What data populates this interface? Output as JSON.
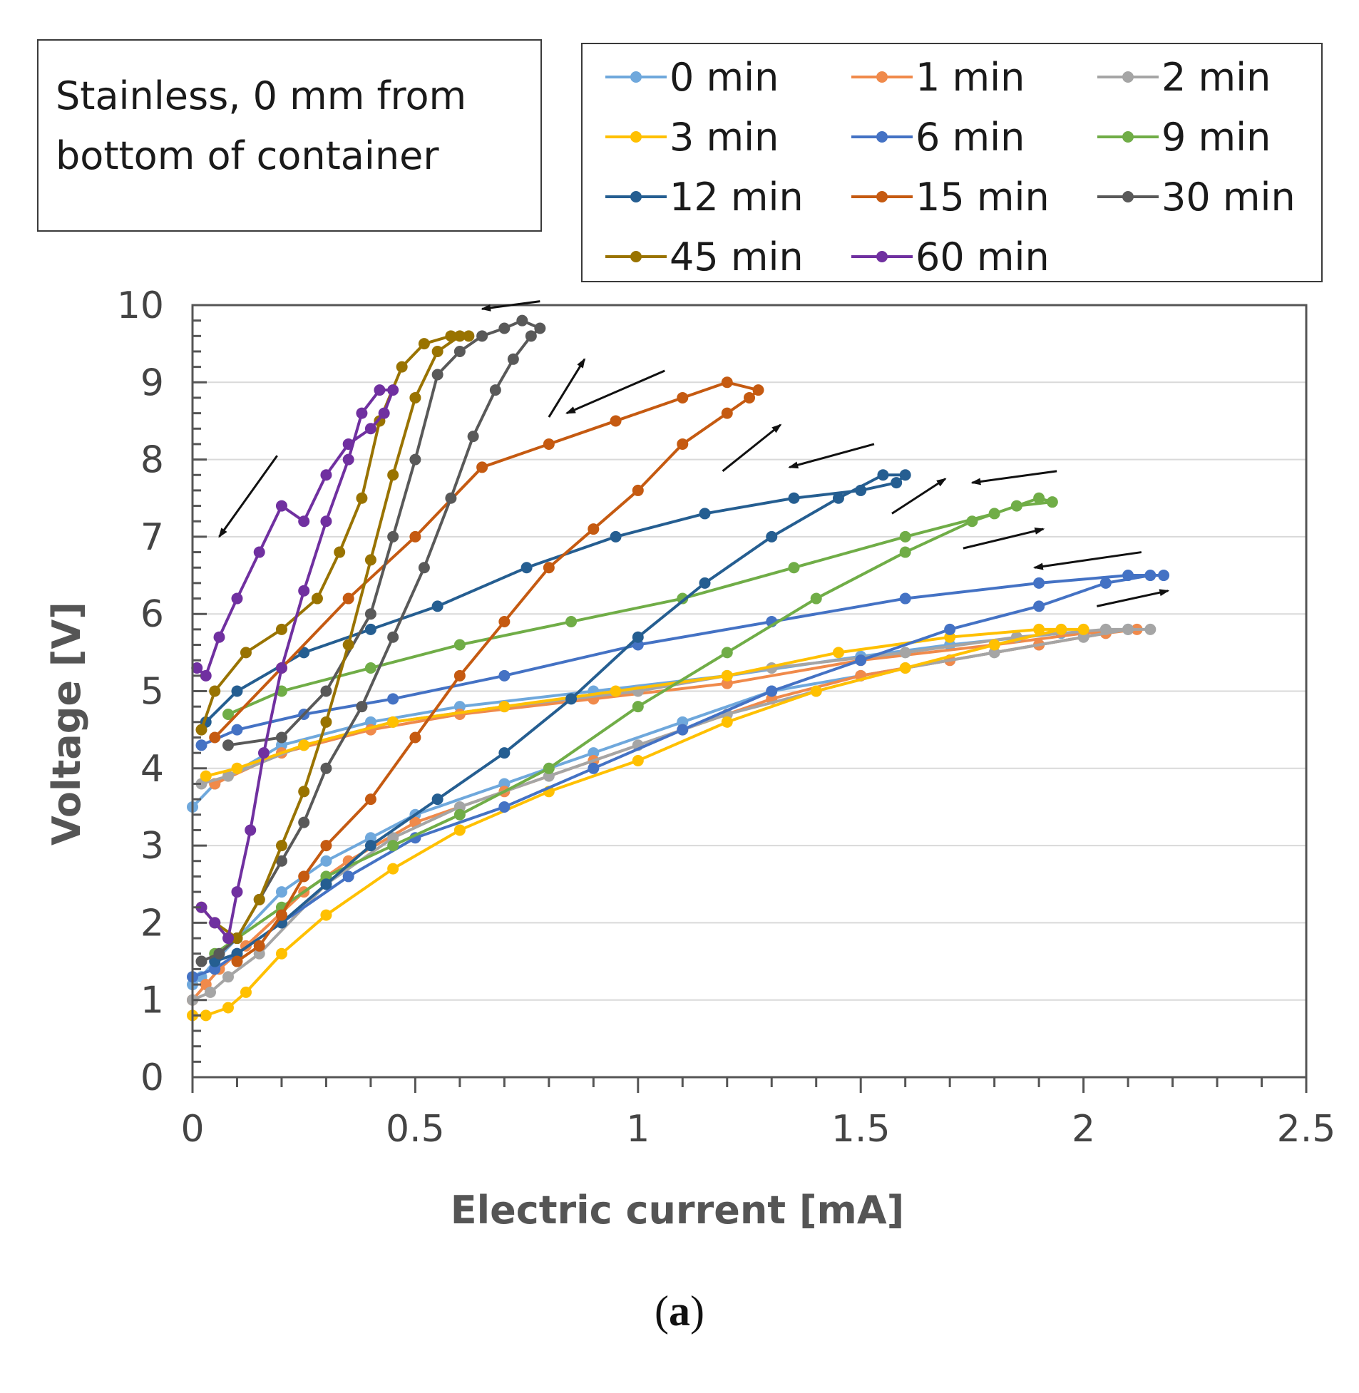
{
  "info_box": {
    "line1": "Stainless, 0 mm from",
    "line2": "bottom of container"
  },
  "caption": {
    "open": "(",
    "label": "a",
    "close": ")"
  },
  "chart_data": {
    "type": "line",
    "title": "",
    "xlabel": "Electric current   [mA]",
    "ylabel": "Voltage   [V]",
    "xlim": [
      0,
      2.5
    ],
    "ylim": [
      0,
      10
    ],
    "x_ticks": [
      0,
      0.5,
      1,
      1.5,
      2,
      2.5
    ],
    "x_tick_labels": [
      "0",
      "0.5",
      "1",
      "1.5",
      "2",
      "2.5"
    ],
    "y_ticks": [
      0,
      1,
      2,
      3,
      4,
      5,
      6,
      7,
      8,
      9,
      10
    ],
    "y_tick_labels": [
      "0",
      "1",
      "2",
      "3",
      "4",
      "5",
      "6",
      "7",
      "8",
      "9",
      "10"
    ],
    "grid": "horizontal",
    "legend_position": "top-right",
    "series": [
      {
        "name": "0 min",
        "color": "#6fa8dc",
        "x": [
          0,
          0.02,
          0.05,
          0.1,
          0.2,
          0.3,
          0.4,
          0.5,
          0.7,
          0.9,
          1.1,
          1.3,
          1.5,
          1.7,
          1.9,
          2.05,
          2.1,
          1.95,
          1.7,
          1.5,
          1.2,
          0.9,
          0.6,
          0.4,
          0.2,
          0.05,
          0
        ],
        "y": [
          1.2,
          1.3,
          1.5,
          1.8,
          2.4,
          2.8,
          3.1,
          3.4,
          3.8,
          4.2,
          4.6,
          5.0,
          5.2,
          5.4,
          5.6,
          5.75,
          5.8,
          5.75,
          5.6,
          5.45,
          5.2,
          5.0,
          4.8,
          4.6,
          4.3,
          3.8,
          3.5
        ]
      },
      {
        "name": "1 min",
        "color": "#f08a4b",
        "x": [
          0,
          0.03,
          0.06,
          0.12,
          0.25,
          0.35,
          0.5,
          0.7,
          0.9,
          1.1,
          1.3,
          1.5,
          1.7,
          1.9,
          2.05,
          2.12,
          2.0,
          1.8,
          1.5,
          1.2,
          0.9,
          0.6,
          0.4,
          0.2,
          0.05
        ],
        "y": [
          1.0,
          1.2,
          1.4,
          1.7,
          2.4,
          2.8,
          3.3,
          3.7,
          4.1,
          4.5,
          4.9,
          5.2,
          5.4,
          5.6,
          5.75,
          5.8,
          5.75,
          5.6,
          5.4,
          5.1,
          4.9,
          4.7,
          4.5,
          4.2,
          3.8
        ]
      },
      {
        "name": "2 min",
        "color": "#a5a5a5",
        "x": [
          0,
          0.04,
          0.08,
          0.15,
          0.3,
          0.45,
          0.6,
          0.8,
          1.0,
          1.2,
          1.4,
          1.6,
          1.8,
          2.0,
          2.1,
          2.15,
          2.05,
          1.85,
          1.6,
          1.3,
          1.0,
          0.7,
          0.45,
          0.25,
          0.08,
          0.02
        ],
        "y": [
          1.0,
          1.1,
          1.3,
          1.6,
          2.5,
          3.1,
          3.5,
          3.9,
          4.3,
          4.7,
          5.0,
          5.3,
          5.5,
          5.7,
          5.8,
          5.8,
          5.8,
          5.7,
          5.5,
          5.3,
          5.0,
          4.8,
          4.6,
          4.3,
          3.9,
          3.8
        ]
      },
      {
        "name": "3 min",
        "color": "#ffc000",
        "x": [
          0,
          0.03,
          0.08,
          0.12,
          0.2,
          0.3,
          0.45,
          0.6,
          0.8,
          1.0,
          1.2,
          1.4,
          1.6,
          1.8,
          1.95,
          2.0,
          1.9,
          1.7,
          1.45,
          1.2,
          0.95,
          0.7,
          0.45,
          0.25,
          0.1,
          0.03
        ],
        "y": [
          0.8,
          0.8,
          0.9,
          1.1,
          1.6,
          2.1,
          2.7,
          3.2,
          3.7,
          4.1,
          4.6,
          5.0,
          5.3,
          5.6,
          5.8,
          5.8,
          5.8,
          5.7,
          5.5,
          5.2,
          5.0,
          4.8,
          4.6,
          4.3,
          4.0,
          3.9
        ]
      },
      {
        "name": "6 min",
        "color": "#4472c4",
        "x": [
          0,
          0.05,
          0.1,
          0.2,
          0.35,
          0.5,
          0.7,
          0.9,
          1.1,
          1.3,
          1.5,
          1.7,
          1.9,
          2.05,
          2.15,
          2.18,
          2.1,
          1.9,
          1.6,
          1.3,
          1.0,
          0.7,
          0.45,
          0.25,
          0.1,
          0.02
        ],
        "y": [
          1.3,
          1.4,
          1.6,
          2.0,
          2.6,
          3.1,
          3.5,
          4.0,
          4.5,
          5.0,
          5.4,
          5.8,
          6.1,
          6.4,
          6.5,
          6.5,
          6.5,
          6.4,
          6.2,
          5.9,
          5.6,
          5.2,
          4.9,
          4.7,
          4.5,
          4.3
        ]
      },
      {
        "name": "9 min",
        "color": "#70ad47",
        "x": [
          0.05,
          0.1,
          0.2,
          0.3,
          0.45,
          0.6,
          0.8,
          1.0,
          1.2,
          1.4,
          1.6,
          1.75,
          1.85,
          1.93,
          1.9,
          1.8,
          1.6,
          1.35,
          1.1,
          0.85,
          0.6,
          0.4,
          0.2,
          0.08
        ],
        "y": [
          1.6,
          1.8,
          2.2,
          2.6,
          3.0,
          3.4,
          4.0,
          4.8,
          5.5,
          6.2,
          6.8,
          7.2,
          7.4,
          7.45,
          7.5,
          7.3,
          7.0,
          6.6,
          6.2,
          5.9,
          5.6,
          5.3,
          5.0,
          4.7
        ]
      },
      {
        "name": "12 min",
        "color": "#255e91",
        "x": [
          0.05,
          0.1,
          0.2,
          0.3,
          0.4,
          0.55,
          0.7,
          0.85,
          1.0,
          1.15,
          1.3,
          1.45,
          1.55,
          1.6,
          1.58,
          1.5,
          1.35,
          1.15,
          0.95,
          0.75,
          0.55,
          0.4,
          0.25,
          0.1,
          0.03
        ],
        "y": [
          1.5,
          1.6,
          2.0,
          2.5,
          3.0,
          3.6,
          4.2,
          4.9,
          5.7,
          6.4,
          7.0,
          7.5,
          7.8,
          7.8,
          7.7,
          7.6,
          7.5,
          7.3,
          7.0,
          6.6,
          6.1,
          5.8,
          5.5,
          5.0,
          4.6
        ]
      },
      {
        "name": "15 min",
        "color": "#c55a11",
        "x": [
          0.1,
          0.15,
          0.2,
          0.25,
          0.3,
          0.4,
          0.5,
          0.6,
          0.7,
          0.8,
          0.9,
          1.0,
          1.1,
          1.2,
          1.25,
          1.27,
          1.2,
          1.1,
          0.95,
          0.8,
          0.65,
          0.5,
          0.35,
          0.2,
          0.05
        ],
        "y": [
          1.5,
          1.7,
          2.1,
          2.6,
          3.0,
          3.6,
          4.4,
          5.2,
          5.9,
          6.6,
          7.1,
          7.6,
          8.2,
          8.6,
          8.8,
          8.9,
          9.0,
          8.8,
          8.5,
          8.2,
          7.9,
          7.0,
          6.2,
          5.3,
          4.4
        ]
      },
      {
        "name": "30 min",
        "color": "#595959",
        "x": [
          0.02,
          0.06,
          0.1,
          0.15,
          0.2,
          0.25,
          0.3,
          0.38,
          0.45,
          0.52,
          0.58,
          0.63,
          0.68,
          0.72,
          0.76,
          0.78,
          0.74,
          0.7,
          0.65,
          0.6,
          0.55,
          0.5,
          0.45,
          0.4,
          0.3,
          0.2,
          0.08
        ],
        "y": [
          1.5,
          1.6,
          1.8,
          2.3,
          2.8,
          3.3,
          4.0,
          4.8,
          5.7,
          6.6,
          7.5,
          8.3,
          8.9,
          9.3,
          9.6,
          9.7,
          9.8,
          9.7,
          9.6,
          9.4,
          9.1,
          8.0,
          7.0,
          6.0,
          5.0,
          4.4,
          4.3
        ]
      },
      {
        "name": "45 min",
        "color": "#997300",
        "x": [
          0.02,
          0.05,
          0.1,
          0.15,
          0.2,
          0.25,
          0.3,
          0.35,
          0.4,
          0.45,
          0.5,
          0.55,
          0.6,
          0.62,
          0.58,
          0.52,
          0.47,
          0.42,
          0.38,
          0.33,
          0.28,
          0.2,
          0.12,
          0.05,
          0.02
        ],
        "y": [
          2.2,
          2.0,
          1.8,
          2.3,
          3.0,
          3.7,
          4.6,
          5.6,
          6.7,
          7.8,
          8.8,
          9.4,
          9.6,
          9.6,
          9.6,
          9.5,
          9.2,
          8.5,
          7.5,
          6.8,
          6.2,
          5.8,
          5.5,
          5.0,
          4.5
        ]
      },
      {
        "name": "60 min",
        "color": "#7030a0",
        "x": [
          0.02,
          0.05,
          0.08,
          0.1,
          0.13,
          0.16,
          0.2,
          0.25,
          0.3,
          0.35,
          0.38,
          0.42,
          0.45,
          0.43,
          0.4,
          0.35,
          0.3,
          0.25,
          0.2,
          0.15,
          0.1,
          0.06,
          0.03,
          0.01
        ],
        "y": [
          2.2,
          2.0,
          1.8,
          2.4,
          3.2,
          4.2,
          5.3,
          6.3,
          7.2,
          8.0,
          8.6,
          8.9,
          8.9,
          8.6,
          8.4,
          8.2,
          7.8,
          7.2,
          7.4,
          6.8,
          6.2,
          5.7,
          5.2,
          5.3
        ]
      }
    ],
    "arrows": [
      {
        "from": [
          0.78,
          10.05
        ],
        "to": [
          0.65,
          9.95
        ]
      },
      {
        "from": [
          0.8,
          8.55
        ],
        "to": [
          0.88,
          9.3
        ]
      },
      {
        "from": [
          1.06,
          9.15
        ],
        "to": [
          0.84,
          8.6
        ]
      },
      {
        "from": [
          1.19,
          7.85
        ],
        "to": [
          1.32,
          8.45
        ]
      },
      {
        "from": [
          1.53,
          8.2
        ],
        "to": [
          1.34,
          7.9
        ]
      },
      {
        "from": [
          1.57,
          7.3
        ],
        "to": [
          1.69,
          7.75
        ]
      },
      {
        "from": [
          1.94,
          7.85
        ],
        "to": [
          1.75,
          7.7
        ]
      },
      {
        "from": [
          1.73,
          6.85
        ],
        "to": [
          1.91,
          7.1
        ]
      },
      {
        "from": [
          2.13,
          6.8
        ],
        "to": [
          1.89,
          6.6
        ]
      },
      {
        "from": [
          2.03,
          6.1
        ],
        "to": [
          2.19,
          6.3
        ]
      },
      {
        "from": [
          0.19,
          8.05
        ],
        "to": [
          0.06,
          7.0
        ]
      }
    ]
  }
}
